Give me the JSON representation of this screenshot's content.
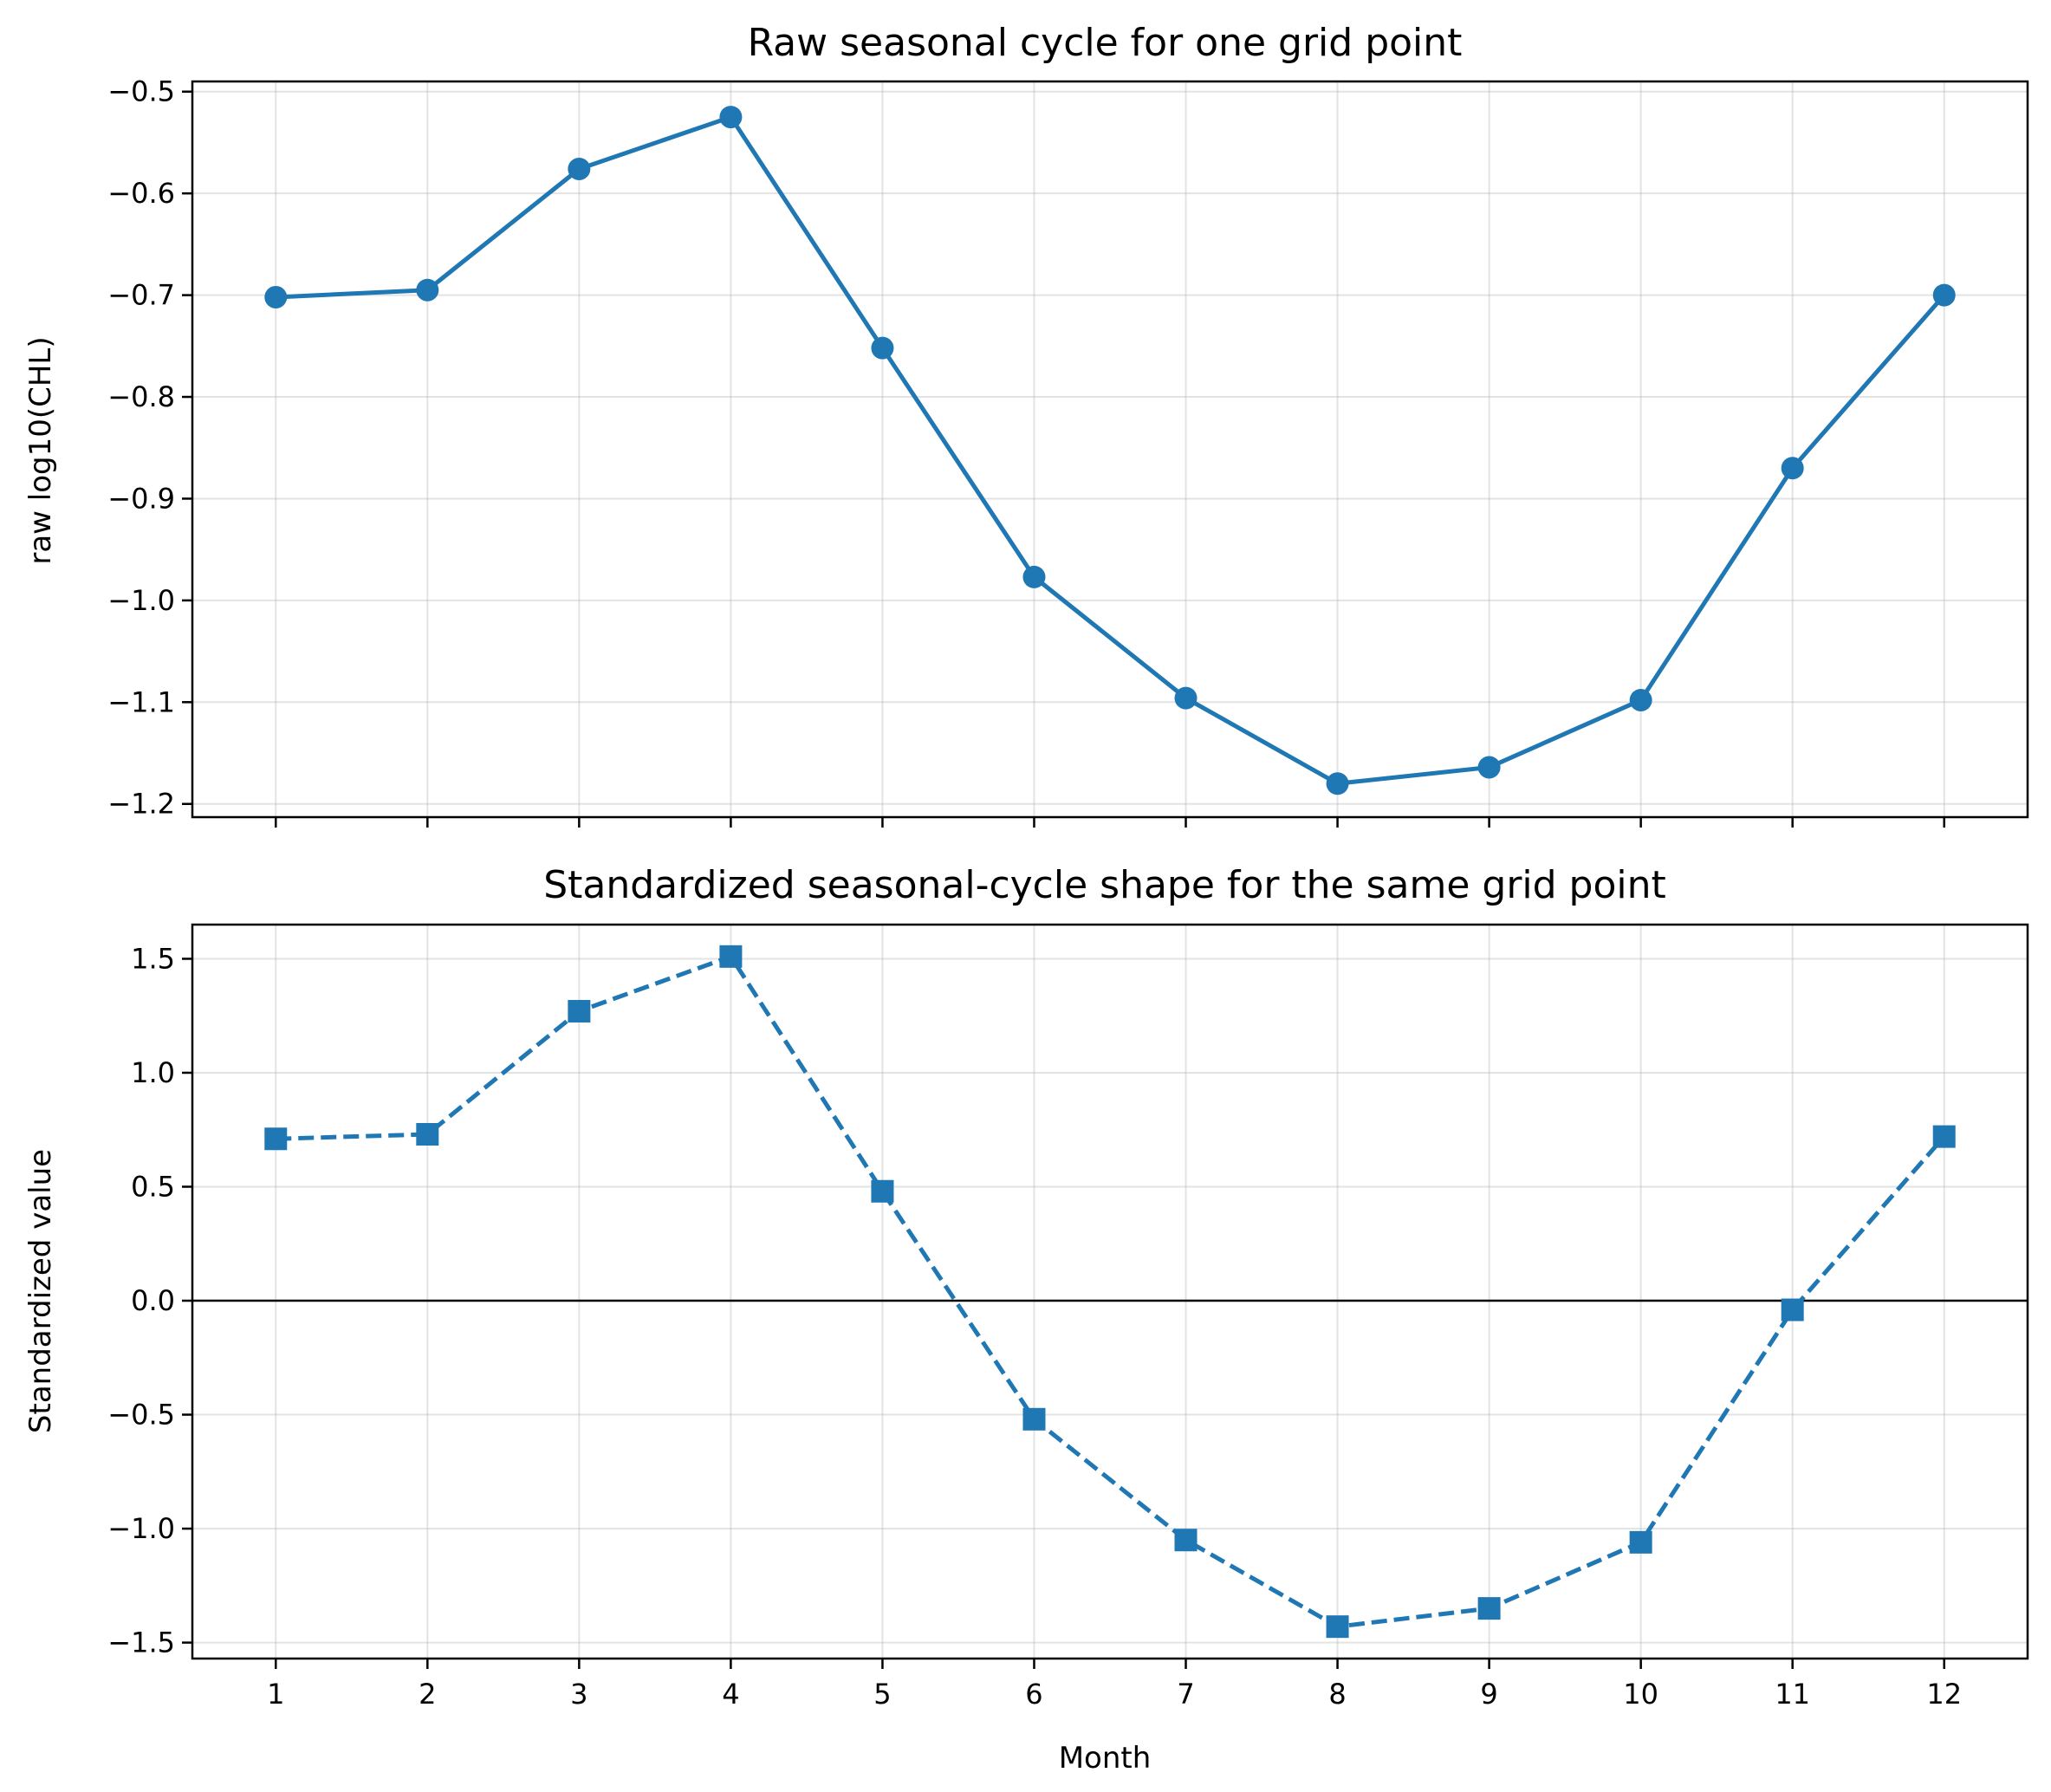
{
  "colors": {
    "series": "#1f77b4",
    "grid": "#b0b0b0",
    "axis": "#000000"
  },
  "chart_data": [
    {
      "type": "line",
      "title": "Raw seasonal cycle for one grid point",
      "xlabel": "",
      "ylabel": "raw log10(CHL)",
      "x": [
        1,
        2,
        3,
        4,
        5,
        6,
        7,
        8,
        9,
        10,
        11,
        12
      ],
      "xlim": [
        0.45,
        12.55
      ],
      "ylim": [
        -1.213,
        -0.49
      ],
      "yticks": [
        -0.5,
        -0.6,
        -0.7,
        -0.8,
        -0.9,
        -1.0,
        -1.1,
        -1.2
      ],
      "ytick_labels": [
        "−0.5",
        "−0.6",
        "−0.7",
        "−0.8",
        "−0.9",
        "−1.0",
        "−1.1",
        "−1.2"
      ],
      "grid": true,
      "marker": "circle",
      "line_style": "solid",
      "series": [
        {
          "values": [
            -0.702,
            -0.695,
            -0.576,
            -0.525,
            -0.752,
            -0.977,
            -1.096,
            -1.18,
            -1.164,
            -1.098,
            -0.87,
            -0.7
          ]
        }
      ]
    },
    {
      "type": "line",
      "title": "Standardized seasonal-cycle shape for the same grid point",
      "xlabel": "Month",
      "ylabel": "Standardized value",
      "x": [
        1,
        2,
        3,
        4,
        5,
        6,
        7,
        8,
        9,
        10,
        11,
        12
      ],
      "xticks": [
        1,
        2,
        3,
        4,
        5,
        6,
        7,
        8,
        9,
        10,
        11,
        12
      ],
      "xtick_labels": [
        "1",
        "2",
        "3",
        "4",
        "5",
        "6",
        "7",
        "8",
        "9",
        "10",
        "11",
        "12"
      ],
      "xlim": [
        0.45,
        12.55
      ],
      "ylim": [
        -1.57,
        1.65
      ],
      "yticks": [
        1.5,
        1.0,
        0.5,
        0.0,
        -0.5,
        -1.0,
        -1.5
      ],
      "ytick_labels": [
        "1.5",
        "1.0",
        "0.5",
        "0.0",
        "−0.5",
        "−1.0",
        "−1.5"
      ],
      "grid": true,
      "zero_line": true,
      "marker": "square",
      "line_style": "dashed",
      "series": [
        {
          "values": [
            0.71,
            0.73,
            1.27,
            1.51,
            0.48,
            -0.52,
            -1.05,
            -1.43,
            -1.35,
            -1.06,
            -0.04,
            0.72
          ]
        }
      ]
    }
  ]
}
